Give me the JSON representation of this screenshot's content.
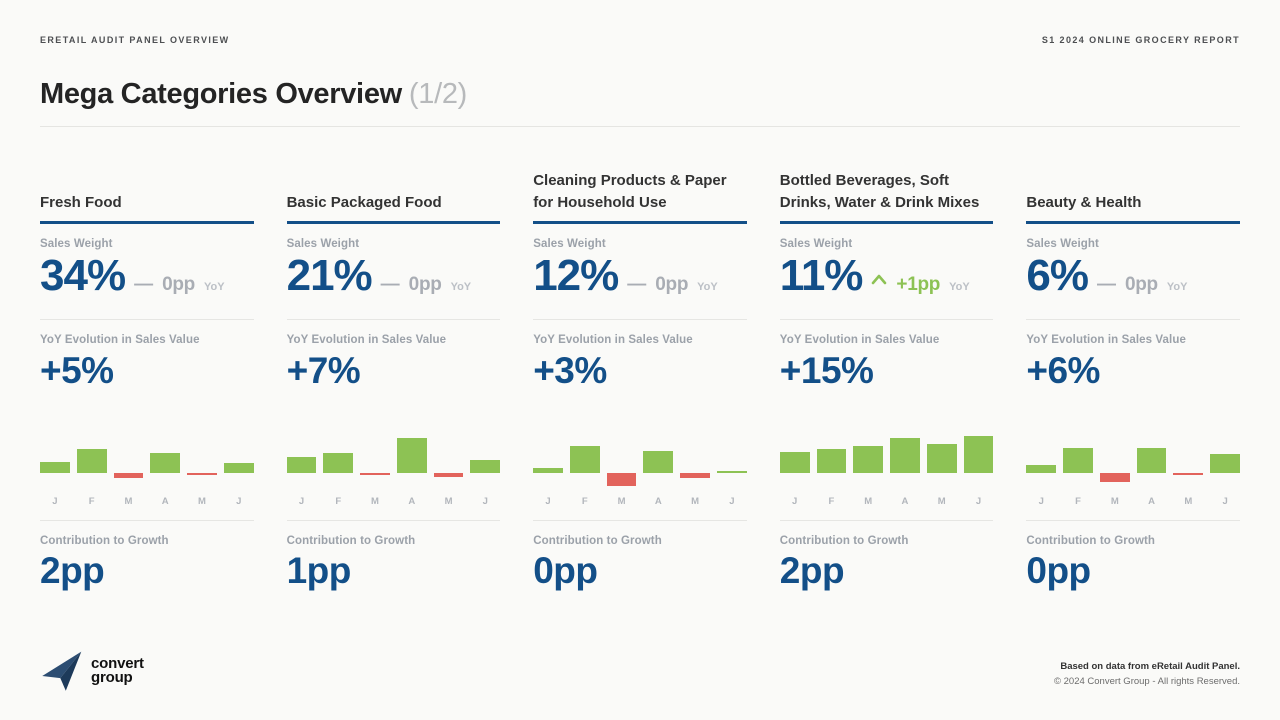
{
  "page": {
    "header_left": "ERETAIL AUDIT PANEL OVERVIEW",
    "header_right": "S1 2024 ONLINE GROCERY REPORT",
    "title": "Mega Categories Overview",
    "title_page_indicator": "(1/2)"
  },
  "labels": {
    "sales_weight": "Sales Weight",
    "yoy_evolution": "YoY Evolution in Sales Value",
    "contribution": "Contribution to Growth",
    "yoy_suffix": "YoY",
    "flat_dash": "—"
  },
  "colors": {
    "accent_blue": "#134F88",
    "bar_green": "#8DC254",
    "bar_red": "#E2635C",
    "label_gray": "#9ba1a9"
  },
  "categories": [
    {
      "name": "Fresh Food",
      "sales_weight": "34%",
      "weight_change": "0pp",
      "weight_change_dir": "flat",
      "yoy_evolution": "+5%",
      "contribution": "2pp"
    },
    {
      "name": "Basic Packaged Food",
      "sales_weight": "21%",
      "weight_change": "0pp",
      "weight_change_dir": "flat",
      "yoy_evolution": "+7%",
      "contribution": "1pp"
    },
    {
      "name": "Cleaning Products & Paper for Household Use",
      "sales_weight": "12%",
      "weight_change": "0pp",
      "weight_change_dir": "flat",
      "yoy_evolution": "+3%",
      "contribution": "0pp"
    },
    {
      "name": "Bottled Beverages, Soft Drinks, Water & Drink Mixes",
      "sales_weight": "11%",
      "weight_change": "+1pp",
      "weight_change_dir": "up",
      "yoy_evolution": "+15%",
      "contribution": "2pp"
    },
    {
      "name": "Beauty & Health",
      "sales_weight": "6%",
      "weight_change": "0pp",
      "weight_change_dir": "flat",
      "yoy_evolution": "+6%",
      "contribution": "0pp"
    }
  ],
  "chart_data": [
    {
      "type": "bar",
      "title": "Fresh Food — monthly YoY trend",
      "categories": [
        "J",
        "F",
        "M",
        "A",
        "M",
        "J"
      ],
      "values": [
        11,
        24,
        -5,
        20,
        -2,
        10
      ],
      "xlabel": "",
      "ylabel": "",
      "note": "axis unlabeled in source; values are relative bar heights, baseline 0",
      "grid": false,
      "legend": false
    },
    {
      "type": "bar",
      "title": "Basic Packaged Food — monthly YoY trend",
      "categories": [
        "J",
        "F",
        "M",
        "A",
        "M",
        "J"
      ],
      "values": [
        16,
        20,
        -2,
        35,
        -4,
        13
      ],
      "xlabel": "",
      "ylabel": "",
      "note": "axis unlabeled in source; values are relative bar heights, baseline 0",
      "grid": false,
      "legend": false
    },
    {
      "type": "bar",
      "title": "Cleaning Products & Paper for Household Use — monthly YoY trend",
      "categories": [
        "J",
        "F",
        "M",
        "A",
        "M",
        "J"
      ],
      "values": [
        5,
        27,
        -13,
        22,
        -5,
        2
      ],
      "xlabel": "",
      "ylabel": "",
      "note": "axis unlabeled in source; values are relative bar heights, baseline 0",
      "grid": false,
      "legend": false
    },
    {
      "type": "bar",
      "title": "Bottled Beverages, Soft Drinks, Water & Drink Mixes — monthly YoY trend",
      "categories": [
        "J",
        "F",
        "M",
        "A",
        "M",
        "J"
      ],
      "values": [
        21,
        24,
        27,
        35,
        29,
        37
      ],
      "xlabel": "",
      "ylabel": "",
      "note": "axis unlabeled in source; values are relative bar heights, baseline 0",
      "grid": false,
      "legend": false
    },
    {
      "type": "bar",
      "title": "Beauty & Health — monthly YoY trend",
      "categories": [
        "J",
        "F",
        "M",
        "A",
        "M",
        "J"
      ],
      "values": [
        8,
        25,
        -9,
        25,
        -2,
        19
      ],
      "xlabel": "",
      "ylabel": "",
      "note": "axis unlabeled in source; values are relative bar heights, baseline 0",
      "grid": false,
      "legend": false
    }
  ],
  "footer": {
    "logo_line1": "convert",
    "logo_line2": "group",
    "source_line1": "Based on data from eRetail Audit Panel.",
    "source_line2": "© 2024 Convert Group - All rights Reserved."
  }
}
